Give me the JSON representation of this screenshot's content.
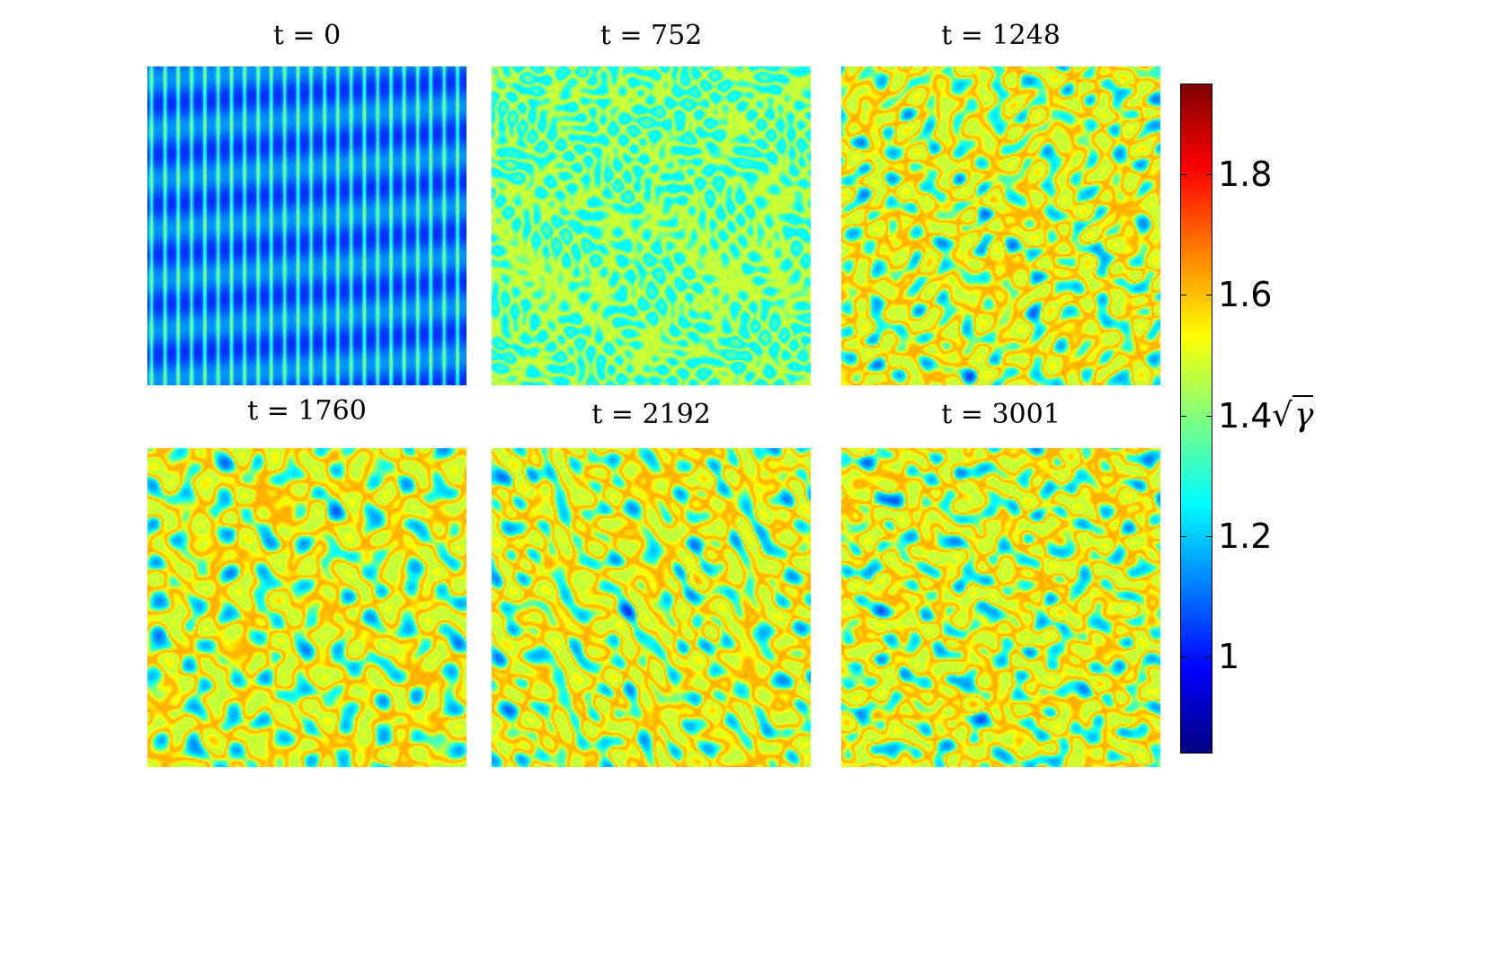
{
  "chart_data": {
    "type": "heatmap",
    "colormap": "jet",
    "colorbar": {
      "label": "√γ",
      "range": [
        0.84,
        1.95
      ],
      "ticks": [
        1,
        1.2,
        1.4,
        1.6,
        1.8
      ],
      "tick_labels": [
        "1",
        "1.2",
        "1.4",
        "1.6",
        "1.8"
      ]
    },
    "panels": [
      {
        "title": "t = 0",
        "t": 0,
        "pattern": "stripes"
      },
      {
        "title": "t = 752",
        "t": 752,
        "pattern": "cells"
      },
      {
        "title": "t = 1248",
        "t": 1248,
        "pattern": "turbulent"
      },
      {
        "title": "t = 1760",
        "t": 1760,
        "pattern": "turbulent"
      },
      {
        "title": "t = 2192",
        "t": 2192,
        "pattern": "turbulent"
      },
      {
        "title": "t = 3001",
        "t": 3001,
        "pattern": "turbulent"
      }
    ]
  }
}
